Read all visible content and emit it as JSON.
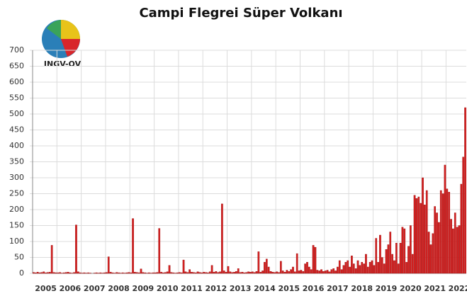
{
  "chart_data": {
    "type": "bar",
    "title": "Campi Flegrei Süper Volkanı",
    "logo": "INGV-OV",
    "color": "#d42020",
    "ylim": [
      0,
      700
    ],
    "yticks": [
      0,
      50,
      100,
      150,
      200,
      250,
      300,
      350,
      400,
      450,
      500,
      550,
      600,
      650,
      700
    ],
    "grid": true,
    "categories": [
      null,
      null,
      null,
      null,
      null,
      null,
      "2005",
      null,
      null,
      null,
      null,
      null,
      null,
      null,
      null,
      null,
      null,
      null,
      "2006",
      null,
      null,
      null,
      null,
      null,
      null,
      null,
      null,
      null,
      null,
      null,
      "2007",
      null,
      null,
      null,
      null,
      null,
      null,
      null,
      null,
      null,
      null,
      null,
      "2008",
      null,
      null,
      null,
      null,
      null,
      null,
      null,
      null,
      null,
      null,
      null,
      "2009",
      null,
      null,
      null,
      null,
      null,
      null,
      null,
      null,
      null,
      null,
      null,
      "2010",
      null,
      null,
      null,
      null,
      null,
      null,
      null,
      null,
      null,
      null,
      null,
      "2011",
      null,
      null,
      null,
      null,
      null,
      null,
      null,
      null,
      null,
      null,
      null,
      "2012",
      null,
      null,
      null,
      null,
      null,
      null,
      null,
      null,
      null,
      null,
      null,
      "2013",
      null,
      null,
      null,
      null,
      null,
      null,
      null,
      null,
      null,
      null,
      null,
      "2014",
      null,
      null,
      null,
      null,
      null,
      null,
      null,
      null,
      null,
      null,
      null,
      "2015",
      null,
      null,
      null,
      null,
      null,
      null,
      null,
      null,
      null,
      null,
      null,
      "2016",
      null,
      null,
      null,
      null,
      null,
      null,
      null,
      null,
      null,
      null,
      null,
      "2017",
      null,
      null,
      null,
      null,
      null,
      null,
      null,
      null,
      null,
      null,
      null,
      "2018",
      null,
      null,
      null,
      null,
      null,
      null,
      null,
      null,
      null,
      null,
      null,
      "2019",
      null,
      null,
      null,
      null,
      null,
      null,
      null,
      null,
      null,
      null,
      null,
      "2020",
      null,
      null,
      null,
      null,
      null,
      null,
      null,
      null,
      null,
      null,
      null,
      "2021",
      null,
      null,
      null,
      null,
      null,
      null,
      null,
      null,
      null,
      null,
      null,
      "2022",
      null,
      null,
      null
    ],
    "values": [
      3,
      2,
      4,
      2,
      3,
      5,
      2,
      3,
      4,
      88,
      3,
      2,
      2,
      3,
      1,
      2,
      3,
      4,
      2,
      1,
      3,
      152,
      5,
      2,
      1,
      2,
      1,
      2,
      1,
      0,
      1,
      2,
      1,
      2,
      1,
      2,
      3,
      52,
      4,
      2,
      1,
      3,
      2,
      1,
      2,
      1,
      2,
      3,
      2,
      172,
      4,
      3,
      2,
      14,
      3,
      2,
      1,
      2,
      1,
      2,
      2,
      3,
      141,
      4,
      2,
      3,
      5,
      25,
      3,
      2,
      1,
      2,
      3,
      2,
      42,
      5,
      3,
      12,
      4,
      3,
      2,
      5,
      3,
      2,
      4,
      3,
      2,
      5,
      25,
      4,
      6,
      3,
      5,
      218,
      8,
      4,
      22,
      5,
      3,
      4,
      6,
      15,
      3,
      4,
      2,
      3,
      5,
      4,
      5,
      3,
      6,
      68,
      4,
      8,
      35,
      45,
      20,
      6,
      4,
      3,
      5,
      3,
      38,
      8,
      4,
      10,
      6,
      12,
      20,
      5,
      62,
      8,
      10,
      6,
      30,
      35,
      20,
      12,
      88,
      82,
      10,
      8,
      12,
      6,
      8,
      10,
      5,
      12,
      15,
      8,
      20,
      40,
      12,
      25,
      35,
      40,
      20,
      55,
      30,
      15,
      40,
      25,
      35,
      30,
      60,
      20,
      35,
      40,
      25,
      110,
      35,
      120,
      50,
      30,
      75,
      90,
      130,
      60,
      40,
      95,
      30,
      95,
      145,
      140,
      35,
      85,
      150,
      60,
      245,
      235,
      240,
      220,
      300,
      215,
      260,
      130,
      90,
      125,
      210,
      190,
      160,
      260,
      250,
      340,
      265,
      255,
      170,
      140,
      190,
      145,
      150,
      280,
      365,
      520
    ]
  }
}
